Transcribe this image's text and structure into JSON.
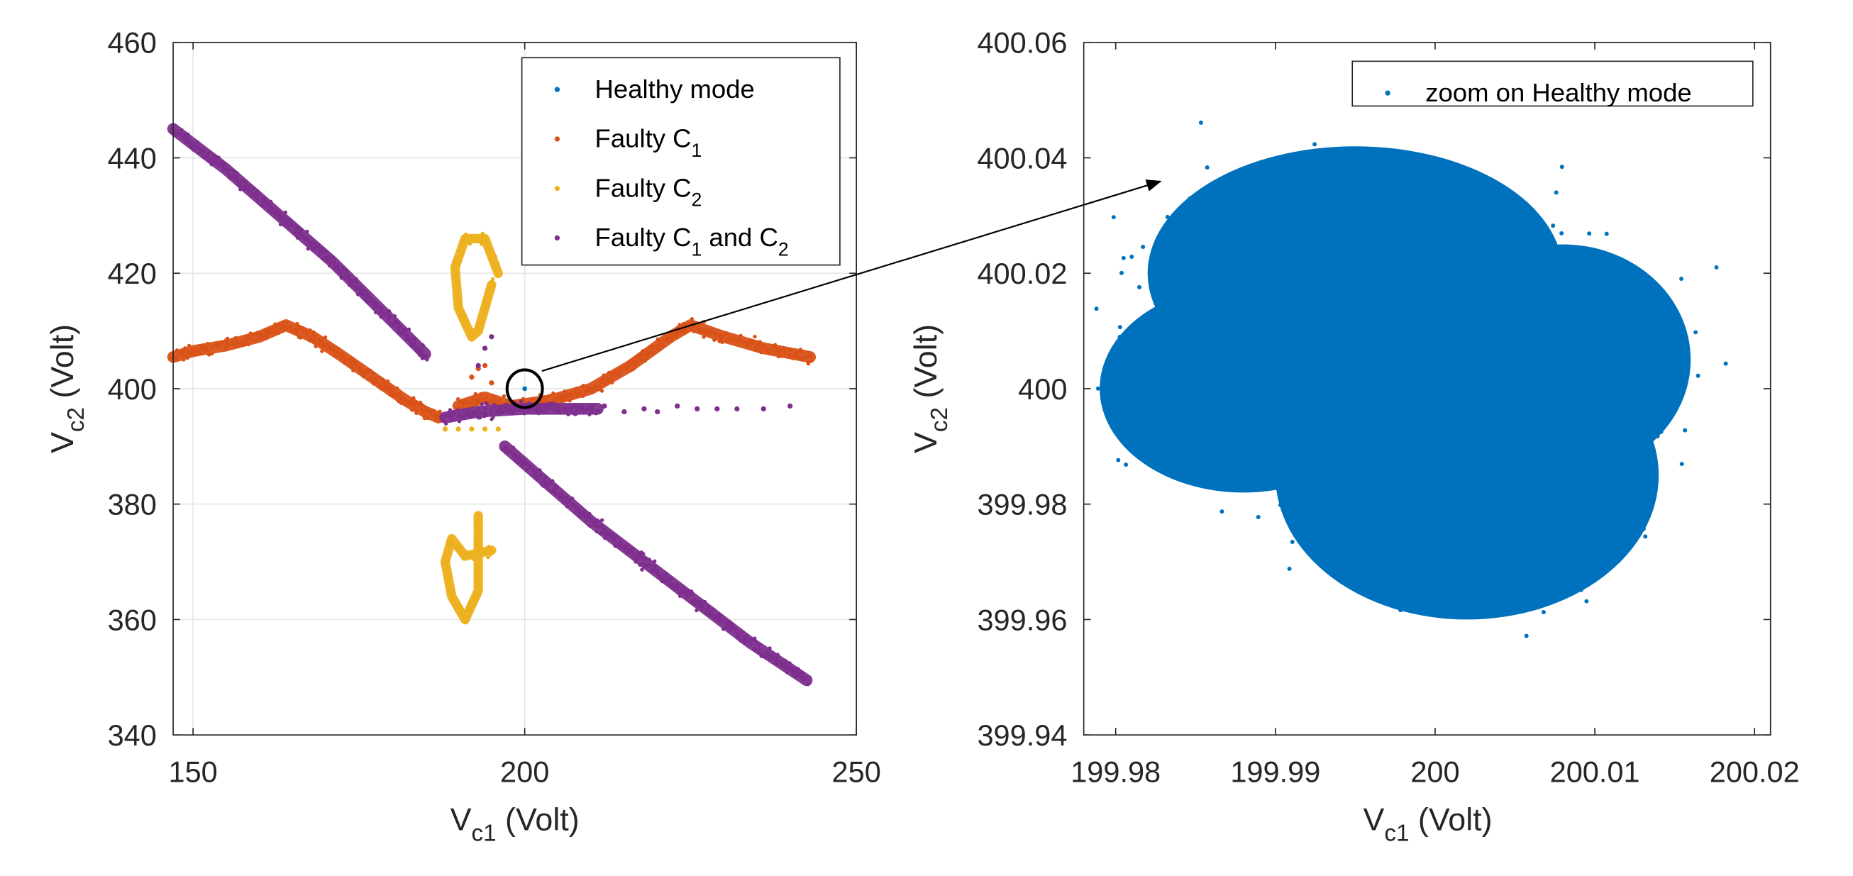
{
  "chart_data": [
    {
      "type": "scatter",
      "xlabel": {
        "base": "V",
        "sub": "c1",
        "unit": "(Volt)"
      },
      "ylabel": {
        "base": "V",
        "sub": "c2",
        "unit": "(Volt)"
      },
      "xlim": [
        147,
        250
      ],
      "ylim": [
        340,
        460
      ],
      "xticks": [
        "150",
        "200",
        "250"
      ],
      "xtick_values": [
        150,
        200,
        250
      ],
      "yticks": [
        "340",
        "360",
        "380",
        "400",
        "420",
        "440",
        "460"
      ],
      "ytick_values": [
        340,
        360,
        380,
        400,
        420,
        440,
        460
      ],
      "grid": true,
      "legend_position": "top-right",
      "annotation": {
        "type": "circle",
        "center": [
          200,
          400
        ]
      },
      "series": [
        {
          "name": "Healthy mode",
          "legend": [
            [
              "Healthy mode",
              ""
            ]
          ],
          "color": "#0072BD",
          "points": [
            [
              200,
              400
            ]
          ]
        },
        {
          "name": "Faulty C1",
          "legend": [
            [
              "Faulty C",
              ""
            ],
            [
              "1",
              "sub"
            ]
          ],
          "color": "#D95319",
          "bands": [
            [
              [
                147,
                405.5
              ],
              [
                150,
                406.5
              ],
              [
                155,
                407.5
              ],
              [
                160,
                409
              ],
              [
                164,
                411
              ],
              [
                168,
                409
              ],
              [
                172,
                406
              ],
              [
                177,
                402
              ],
              [
                182,
                398
              ],
              [
                185,
                396
              ],
              [
                187,
                395
              ]
            ],
            [
              [
                190,
                397
              ],
              [
                194,
                398.5
              ],
              [
                198,
                397
              ],
              [
                204,
                398
              ],
              [
                210,
                400
              ],
              [
                216,
                404
              ],
              [
                222,
                409
              ],
              [
                225,
                411
              ],
              [
                230,
                409
              ],
              [
                236,
                407
              ],
              [
                243,
                405.5
              ]
            ]
          ],
          "scattered": [
            [
              192,
              402
            ],
            [
              193,
              398
            ],
            [
              195,
              401
            ],
            [
              196,
              396
            ],
            [
              193,
              403.5
            ],
            [
              194,
              404
            ]
          ]
        },
        {
          "name": "Faulty C2",
          "legend": [
            [
              "Faulty C",
              ""
            ],
            [
              "2",
              "sub"
            ]
          ],
          "color": "#EDB120",
          "bands": [
            [
              [
                196,
                420
              ],
              [
                194,
                426
              ],
              [
                191,
                426
              ],
              [
                189.5,
                421
              ],
              [
                190,
                414
              ],
              [
                192,
                409
              ],
              [
                193,
                410
              ],
              [
                195,
                418
              ]
            ],
            [
              [
                193,
                378
              ],
              [
                193,
                365
              ],
              [
                191,
                360
              ],
              [
                189,
                364
              ],
              [
                188,
                370
              ],
              [
                189,
                374
              ],
              [
                191,
                371
              ],
              [
                195,
                372
              ]
            ]
          ],
          "scattered": [
            [
              188,
              393
            ],
            [
              190,
              393
            ],
            [
              192,
              393
            ],
            [
              194,
              393
            ],
            [
              196,
              393
            ]
          ]
        },
        {
          "name": "Faulty C1 and C2",
          "legend": [
            [
              "Faulty C",
              ""
            ],
            [
              "1",
              "sub"
            ],
            [
              " and C",
              ""
            ],
            [
              "2",
              "sub"
            ]
          ],
          "color": "#7E2F8E",
          "bands": [
            [
              [
                147,
                445
              ],
              [
                155,
                438
              ],
              [
                163,
                430
              ],
              [
                171,
                422
              ],
              [
                178,
                414
              ],
              [
                185,
                406
              ]
            ],
            [
              [
                197,
                390
              ],
              [
                203,
                384
              ],
              [
                210,
                377
              ],
              [
                218,
                370
              ],
              [
                226,
                363
              ],
              [
                234,
                356
              ],
              [
                242.5,
                349.5
              ]
            ],
            [
              [
                188,
                395
              ],
              [
                193,
                396
              ],
              [
                200,
                396.5
              ],
              [
                207,
                396.5
              ],
              [
                211,
                396.5
              ]
            ]
          ],
          "scattered": [
            [
              212,
              397
            ],
            [
              215,
              396
            ],
            [
              218,
              396.5
            ],
            [
              220,
              396
            ],
            [
              223,
              397
            ],
            [
              226,
              396.5
            ],
            [
              229,
              396.5
            ],
            [
              232,
              396.5
            ],
            [
              236,
              396.5
            ],
            [
              240,
              397
            ],
            [
              193,
              404
            ],
            [
              194,
              407
            ],
            [
              195,
              409
            ]
          ]
        }
      ]
    },
    {
      "type": "scatter",
      "xlabel": {
        "base": "V",
        "sub": "c1",
        "unit": "(Volt)"
      },
      "ylabel": {
        "base": "V",
        "sub": "c2",
        "unit": "(Volt)"
      },
      "xlim": [
        199.978,
        200.021
      ],
      "ylim": [
        399.94,
        400.06
      ],
      "xticks": [
        "199.98",
        "199.99",
        "200",
        "200.01",
        "200.02"
      ],
      "xtick_values": [
        199.98,
        199.99,
        200,
        200.01,
        200.02
      ],
      "yticks": [
        "399.94",
        "399.96",
        "399.98",
        "400",
        "400.02",
        "400.04",
        "400.06"
      ],
      "ytick_values": [
        399.94,
        399.96,
        399.98,
        400,
        400.02,
        400.04,
        400.06
      ],
      "grid": false,
      "legend_position": "top-right",
      "series": [
        {
          "name": "zoom on Healthy mode",
          "legend": [
            [
              "zoom on Healthy mode",
              ""
            ]
          ],
          "color": "#0072BD",
          "blobs": [
            {
              "cx": 199.995,
              "cy": 400.02,
              "rx": 0.013,
              "ry": 0.022
            },
            {
              "cx": 200.002,
              "cy": 399.985,
              "rx": 0.012,
              "ry": 0.025
            },
            {
              "cx": 199.988,
              "cy": 400.0,
              "rx": 0.009,
              "ry": 0.018
            },
            {
              "cx": 200.008,
              "cy": 400.005,
              "rx": 0.008,
              "ry": 0.02
            }
          ]
        }
      ]
    }
  ]
}
